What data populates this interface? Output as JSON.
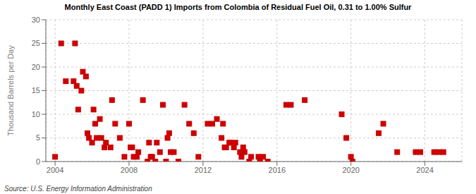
{
  "chart_data": {
    "type": "scatter",
    "title": "Monthly East Coast (PADD 1) Imports from Colombia of Residual Fuel Oil, 0.31 to 1.00% Sulfur",
    "y_label": "Thousand Barrels per Day",
    "source": "Source: U.S. Energy Information Administration",
    "color": "#cc0000",
    "marker": "square",
    "grid": true,
    "xlim": [
      2003.5,
      2026.0
    ],
    "ylim": [
      0,
      30
    ],
    "yticks": [
      0,
      5,
      10,
      15,
      20,
      25,
      30
    ],
    "xticks": [
      2004,
      2008,
      2012,
      2016,
      2020,
      2024
    ],
    "x": [
      2004.0,
      2004.33,
      2004.58,
      2005.0,
      2005.08,
      2005.17,
      2005.25,
      2005.42,
      2005.5,
      2005.67,
      2005.75,
      2005.83,
      2006.0,
      2006.08,
      2006.17,
      2006.25,
      2006.42,
      2006.5,
      2006.67,
      2006.75,
      2007.0,
      2007.08,
      2007.25,
      2007.5,
      2007.75,
      2008.0,
      2008.08,
      2008.17,
      2008.25,
      2008.42,
      2008.5,
      2008.75,
      2009.0,
      2009.08,
      2009.17,
      2009.25,
      2009.42,
      2009.5,
      2009.67,
      2009.83,
      2010.0,
      2010.08,
      2010.17,
      2010.25,
      2010.42,
      2010.67,
      2011.0,
      2011.25,
      2011.5,
      2011.75,
      2012.25,
      2012.5,
      2012.75,
      2013.0,
      2013.08,
      2013.17,
      2013.25,
      2013.42,
      2013.5,
      2013.67,
      2013.75,
      2014.0,
      2014.08,
      2014.17,
      2014.25,
      2014.5,
      2014.6,
      2015.0,
      2015.08,
      2015.25,
      2015.5,
      2016.5,
      2016.75,
      2017.5,
      2019.5,
      2019.75,
      2020.0,
      2020.08,
      2021.5,
      2021.75,
      2022.5,
      2023.5,
      2023.75,
      2024.5,
      2024.75,
      2025.0
    ],
    "values": [
      1,
      25,
      17,
      17,
      25,
      16,
      11,
      15,
      19,
      18,
      6,
      5,
      4,
      11,
      8,
      5,
      9,
      5,
      3,
      4,
      3,
      13,
      8,
      5,
      1,
      8,
      3,
      3,
      1,
      1,
      2,
      13,
      0,
      4,
      1,
      1,
      0,
      4,
      2,
      12,
      0,
      5,
      6,
      2,
      2,
      0,
      12,
      8,
      6,
      1,
      8,
      8,
      9,
      5,
      8,
      3,
      3,
      4,
      4,
      3,
      4,
      2,
      1,
      3,
      2,
      0,
      1,
      1,
      0,
      1,
      0,
      12,
      12,
      13,
      10,
      5,
      1,
      0,
      6,
      8,
      2,
      2,
      2,
      2,
      2,
      2
    ]
  }
}
